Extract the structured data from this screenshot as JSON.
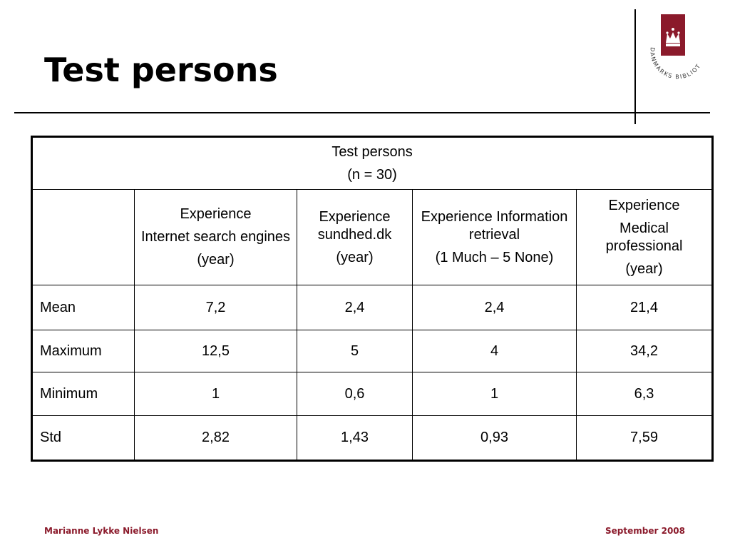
{
  "slide": {
    "title": "Test persons",
    "logo_text": "DANMARKS BIBLIOTEKSSKOLE",
    "accent_color": "#8b1a2b"
  },
  "table": {
    "caption_line1": "Test persons",
    "caption_line2": "(n = 30)",
    "columns": [
      {
        "lines": [
          "Experience",
          "Internet search engines",
          "(year)"
        ]
      },
      {
        "lines": [
          "Experience sundhed.dk",
          "(year)"
        ]
      },
      {
        "lines": [
          "Experience Information retrieval",
          "(1 Much – 5 None)"
        ]
      },
      {
        "lines": [
          "Experience",
          "Medical professional",
          "(year)"
        ]
      }
    ],
    "rows": [
      {
        "label": "Mean",
        "values": [
          "7,2",
          "2,4",
          "2,4",
          "21,4"
        ]
      },
      {
        "label": "Maximum",
        "values": [
          "12,5",
          "5",
          "4",
          "34,2"
        ]
      },
      {
        "label": "Minimum",
        "values": [
          "1",
          "0,6",
          "1",
          "6,3"
        ]
      },
      {
        "label": "Std",
        "values": [
          "2,82",
          "1,43",
          "0,93",
          "7,59"
        ]
      }
    ]
  },
  "footer": {
    "author": "Marianne Lykke Nielsen",
    "date": "September 2008"
  }
}
